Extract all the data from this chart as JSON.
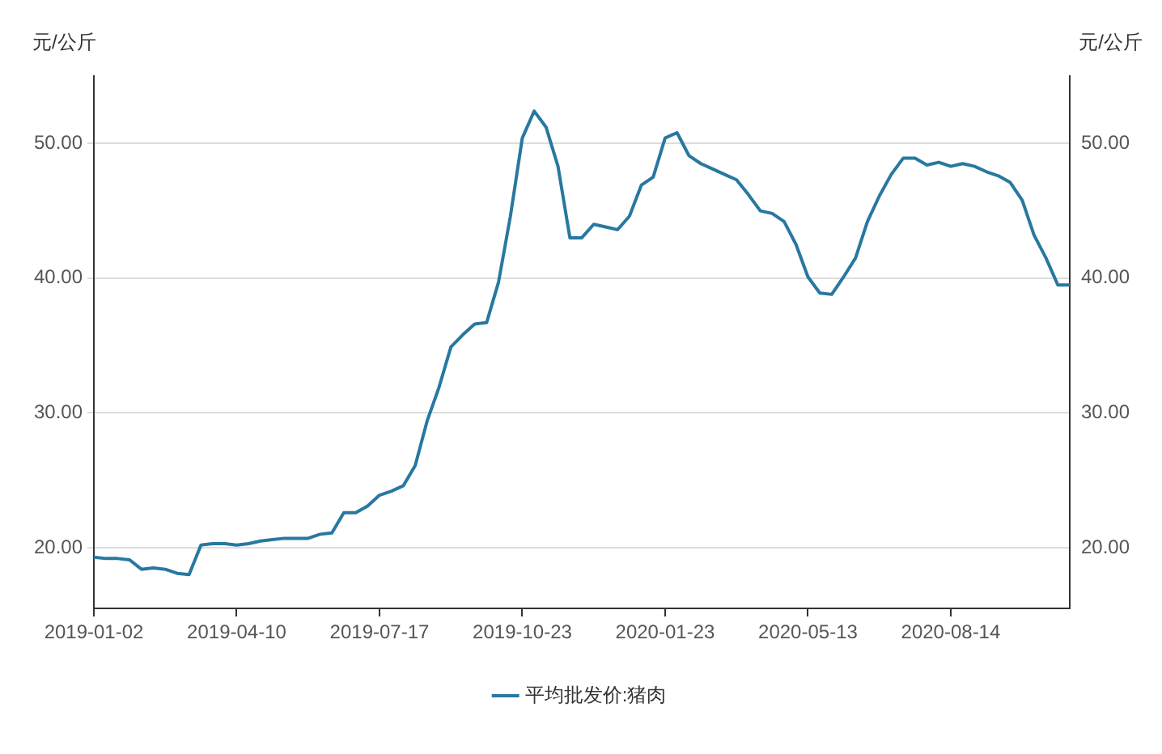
{
  "chart_data": {
    "type": "line",
    "ylabel": "元/公斤",
    "y2label": "元/公斤",
    "categories": [
      "2019-01-02",
      null,
      null,
      null,
      null,
      null,
      null,
      null,
      null,
      null,
      null,
      null,
      "2019-04-10",
      null,
      null,
      null,
      null,
      null,
      null,
      null,
      null,
      null,
      null,
      null,
      "2019-07-17",
      null,
      null,
      null,
      null,
      null,
      null,
      null,
      null,
      null,
      null,
      null,
      "2019-10-23",
      null,
      null,
      null,
      null,
      null,
      null,
      null,
      null,
      null,
      null,
      null,
      "2020-01-23",
      null,
      null,
      null,
      null,
      null,
      null,
      null,
      null,
      null,
      null,
      null,
      "2020-05-13",
      null,
      null,
      null,
      null,
      null,
      null,
      null,
      null,
      null,
      null,
      null,
      "2020-08-14",
      null,
      null,
      null,
      null,
      null,
      null,
      null,
      null,
      null,
      null
    ],
    "series": [
      {
        "name": "平均批发价:猪肉",
        "color": "#2878a0",
        "values": [
          19.3,
          19.2,
          19.2,
          19.1,
          18.4,
          18.5,
          18.4,
          18.1,
          18.0,
          20.2,
          20.3,
          20.3,
          20.2,
          20.3,
          20.5,
          20.6,
          20.7,
          20.7,
          20.7,
          21.0,
          21.1,
          22.6,
          22.6,
          23.1,
          23.9,
          24.2,
          24.6,
          26.1,
          29.4,
          31.9,
          34.9,
          35.8,
          36.6,
          36.7,
          39.7,
          44.6,
          50.4,
          52.4,
          51.2,
          48.3,
          43.0,
          43.0,
          44.0,
          43.8,
          43.6,
          44.6,
          46.9,
          47.5,
          50.4,
          50.8,
          49.1,
          48.5,
          48.1,
          47.7,
          47.3,
          46.2,
          45.0,
          44.8,
          44.2,
          42.5,
          40.1,
          38.9,
          38.8,
          40.1,
          41.5,
          44.2,
          46.1,
          47.7,
          48.9,
          48.9,
          48.4,
          48.6,
          48.3,
          48.5,
          48.3,
          47.9,
          47.6,
          47.1,
          45.8,
          43.2,
          41.5,
          39.5,
          39.5
        ]
      }
    ],
    "ylim": [
      15.5,
      55
    ],
    "yticks": [
      {
        "value": 20,
        "label": "20.00"
      },
      {
        "value": 30,
        "label": "30.00"
      },
      {
        "value": 40,
        "label": "40.00"
      },
      {
        "value": 50,
        "label": "50.00"
      }
    ],
    "y2lim": [
      15.5,
      55
    ],
    "y2ticks": [
      {
        "value": 20,
        "label": "20.00"
      },
      {
        "value": 30,
        "label": "30.00"
      },
      {
        "value": 40,
        "label": "40.00"
      },
      {
        "value": 50,
        "label": "50.00"
      }
    ],
    "grid": "y",
    "legend": "bottom",
    "marker": "none",
    "line_style": "solid"
  }
}
